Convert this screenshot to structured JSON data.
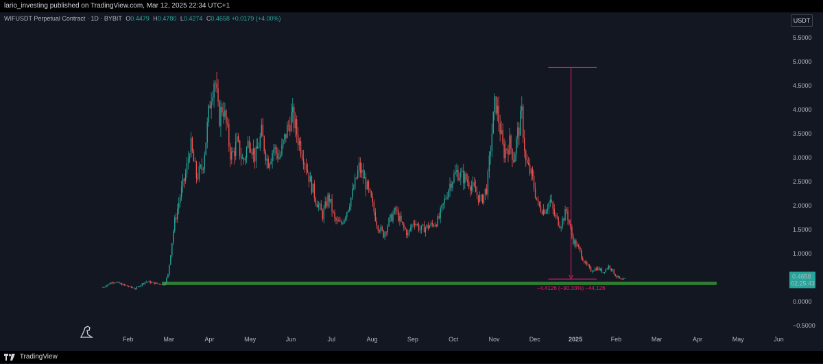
{
  "header": {
    "publisher": "lario_investing published on TradingView.com, Mar 12, 2025 22:34 UTC+1"
  },
  "symbol_bar": {
    "title": "WIFUSDT Perpetual Contract · 1D · BYBIT",
    "open_label": "O",
    "open": "0.4479",
    "high_label": "H",
    "high": "0.4780",
    "low_label": "L",
    "low": "0.4274",
    "close_label": "C",
    "close": "0.4658",
    "change": "+0.0179 (+4.00%)"
  },
  "currency_button": "USDT",
  "price_badge": {
    "price": "0.4658",
    "countdown": "02:25:43",
    "color": "#26a69a"
  },
  "measure_label": "−4.4126 (−90.33%) −44,126",
  "footer": {
    "brand": "TradingView"
  },
  "colors": {
    "up": "#26a69a",
    "down": "#ef5350",
    "support": "#2e7d32",
    "measure": "#e91e63",
    "background": "#131722"
  },
  "chart_data": {
    "type": "candlestick",
    "timeframe": "1D",
    "x_ticks": [
      "Feb",
      "Mar",
      "Apr",
      "May",
      "Jun",
      "Jul",
      "Aug",
      "Sep",
      "Oct",
      "Nov",
      "Dec",
      "2025",
      "Feb",
      "Mar",
      "Apr",
      "May",
      "Jun"
    ],
    "y_ticks": [
      "5.5000",
      "5.0000",
      "4.5000",
      "4.0000",
      "3.5000",
      "3.0000",
      "2.5000",
      "2.0000",
      "1.5000",
      "1.0000",
      "0.0000",
      "−0.5000"
    ],
    "ylim": [
      -0.6,
      5.8
    ],
    "support_level": 0.38,
    "measure": {
      "from_month": 10.95,
      "to_month": 11.55,
      "high": 4.88,
      "low": 0.47
    },
    "close_path": [
      [
        0.0,
        0.3
      ],
      [
        0.25,
        0.42
      ],
      [
        0.5,
        0.35
      ],
      [
        0.8,
        0.27
      ],
      [
        1.05,
        0.42
      ],
      [
        1.3,
        0.38
      ],
      [
        1.5,
        0.36
      ],
      [
        1.6,
        0.55
      ],
      [
        1.75,
        1.6
      ],
      [
        1.9,
        2.2
      ],
      [
        2.05,
        2.7
      ],
      [
        2.15,
        3.3
      ],
      [
        2.3,
        2.6
      ],
      [
        2.45,
        2.8
      ],
      [
        2.55,
        3.5
      ],
      [
        2.65,
        4.3
      ],
      [
        2.75,
        4.7
      ],
      [
        2.85,
        3.8
      ],
      [
        2.95,
        4.1
      ],
      [
        3.05,
        3.6
      ],
      [
        3.15,
        3.0
      ],
      [
        3.3,
        3.3
      ],
      [
        3.45,
        2.9
      ],
      [
        3.6,
        3.4
      ],
      [
        3.75,
        3.0
      ],
      [
        3.9,
        3.5
      ],
      [
        4.05,
        2.9
      ],
      [
        4.2,
        3.2
      ],
      [
        4.35,
        3.0
      ],
      [
        4.5,
        3.5
      ],
      [
        4.65,
        3.9
      ],
      [
        4.8,
        3.4
      ],
      [
        4.95,
        3.0
      ],
      [
        5.1,
        2.5
      ],
      [
        5.25,
        2.1
      ],
      [
        5.4,
        1.8
      ],
      [
        5.55,
        2.2
      ],
      [
        5.7,
        1.7
      ],
      [
        5.85,
        1.6
      ],
      [
        6.0,
        1.9
      ],
      [
        6.15,
        2.3
      ],
      [
        6.3,
        2.8
      ],
      [
        6.45,
        2.5
      ],
      [
        6.6,
        2.1
      ],
      [
        6.75,
        1.6
      ],
      [
        6.9,
        1.4
      ],
      [
        7.05,
        1.7
      ],
      [
        7.2,
        1.9
      ],
      [
        7.35,
        1.6
      ],
      [
        7.5,
        1.4
      ],
      [
        7.65,
        1.7
      ],
      [
        7.8,
        1.5
      ],
      [
        7.95,
        1.55
      ],
      [
        8.1,
        1.6
      ],
      [
        8.25,
        1.7
      ],
      [
        8.4,
        2.1
      ],
      [
        8.55,
        2.5
      ],
      [
        8.7,
        2.7
      ],
      [
        8.85,
        2.6
      ],
      [
        9.0,
        2.5
      ],
      [
        9.15,
        2.3
      ],
      [
        9.3,
        2.1
      ],
      [
        9.45,
        2.4
      ],
      [
        9.55,
        3.4
      ],
      [
        9.65,
        4.2
      ],
      [
        9.75,
        3.7
      ],
      [
        9.85,
        3.1
      ],
      [
        10.0,
        3.3
      ],
      [
        10.1,
        3.0
      ],
      [
        10.2,
        3.5
      ],
      [
        10.3,
        3.9
      ],
      [
        10.4,
        2.9
      ],
      [
        10.55,
        2.6
      ],
      [
        10.7,
        2.0
      ],
      [
        10.85,
        1.9
      ],
      [
        11.0,
        2.1
      ],
      [
        11.1,
        1.8
      ],
      [
        11.25,
        1.6
      ],
      [
        11.4,
        1.9
      ],
      [
        11.55,
        1.3
      ],
      [
        11.7,
        1.1
      ],
      [
        11.85,
        0.8
      ],
      [
        12.0,
        0.65
      ],
      [
        12.15,
        0.7
      ],
      [
        12.3,
        0.62
      ],
      [
        12.45,
        0.75
      ],
      [
        12.6,
        0.55
      ],
      [
        12.75,
        0.44
      ],
      [
        12.85,
        0.47
      ]
    ]
  }
}
